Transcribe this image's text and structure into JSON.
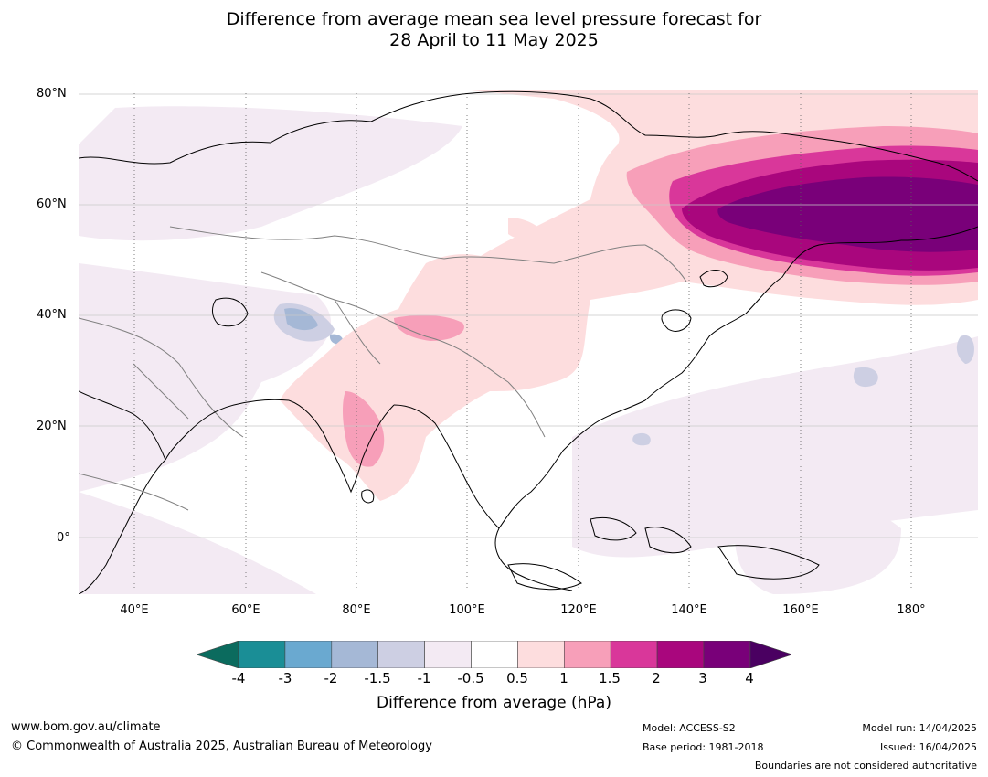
{
  "title_line1": "Difference from average mean sea level pressure forecast for",
  "title_line2": "28 April to 11 May 2025",
  "map": {
    "lat_labels": [
      "80°N",
      "60°N",
      "40°N",
      "20°N",
      "0°"
    ],
    "lon_labels": [
      "40°E",
      "60°E",
      "80°E",
      "100°E",
      "120°E",
      "140°E",
      "160°E",
      "180°"
    ],
    "land_outline_color": "#000000",
    "border_color": "#808080",
    "grid_color": "#c8c8c8"
  },
  "legend": {
    "title": "Difference from average (hPa)",
    "ticks": [
      "-4",
      "-3",
      "-2",
      "-1.5",
      "-1",
      "-0.5",
      "0.5",
      "1",
      "1.5",
      "2",
      "3",
      "4"
    ],
    "colors": {
      "below_min": "#0b6b5e",
      "bins": [
        "#1a8e96",
        "#6aa9d0",
        "#a5b8d6",
        "#cdcfe3",
        "#f3eaf3",
        "#ffffff",
        "#fdddde",
        "#f79fb9",
        "#d9379a",
        "#a9067d",
        "#790079"
      ],
      "above_max": "#4a0061"
    }
  },
  "footer": {
    "website": "www.bom.gov.au/climate",
    "copyright": "© Commonwealth of Australia 2025, Australian Bureau of Meteorology",
    "model": "Model: ACCESS-S2",
    "base_period": "Base period: 1981-2018",
    "model_run": "Model run: 14/04/2025",
    "issued": "Issued: 16/04/2025",
    "disclaimer": "Boundaries are not considered authoritative"
  }
}
